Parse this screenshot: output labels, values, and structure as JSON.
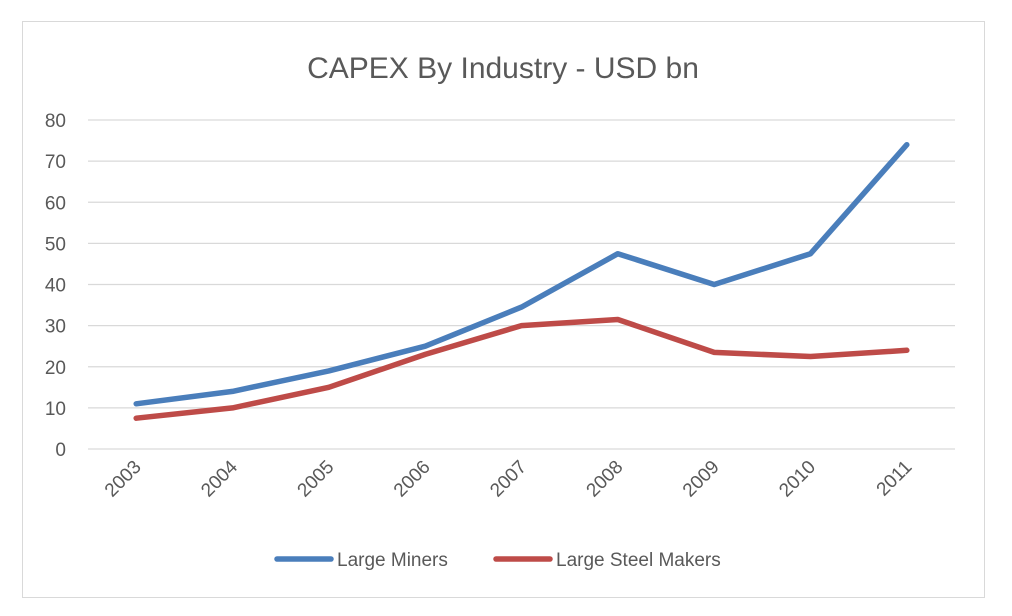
{
  "chart_data": {
    "type": "line",
    "title": "CAPEX By Industry - USD bn",
    "xlabel": "",
    "ylabel": "",
    "categories": [
      "2003",
      "2004",
      "2005",
      "2006",
      "2007",
      "2008",
      "2009",
      "2010",
      "2011"
    ],
    "ylim": [
      0,
      80
    ],
    "yticks": [
      "0",
      "10",
      "20",
      "30",
      "40",
      "50",
      "60",
      "70",
      "80"
    ],
    "grid": true,
    "legend_position": "bottom",
    "series": [
      {
        "name": "Large Miners",
        "color": "#4a7ebb",
        "values": [
          11,
          14,
          19,
          25,
          34.5,
          47.5,
          40,
          47.5,
          74
        ]
      },
      {
        "name": "Large Steel Makers",
        "color": "#be4b48",
        "values": [
          7.5,
          10,
          15,
          23,
          30,
          31.5,
          23.5,
          22.5,
          24
        ]
      }
    ]
  }
}
